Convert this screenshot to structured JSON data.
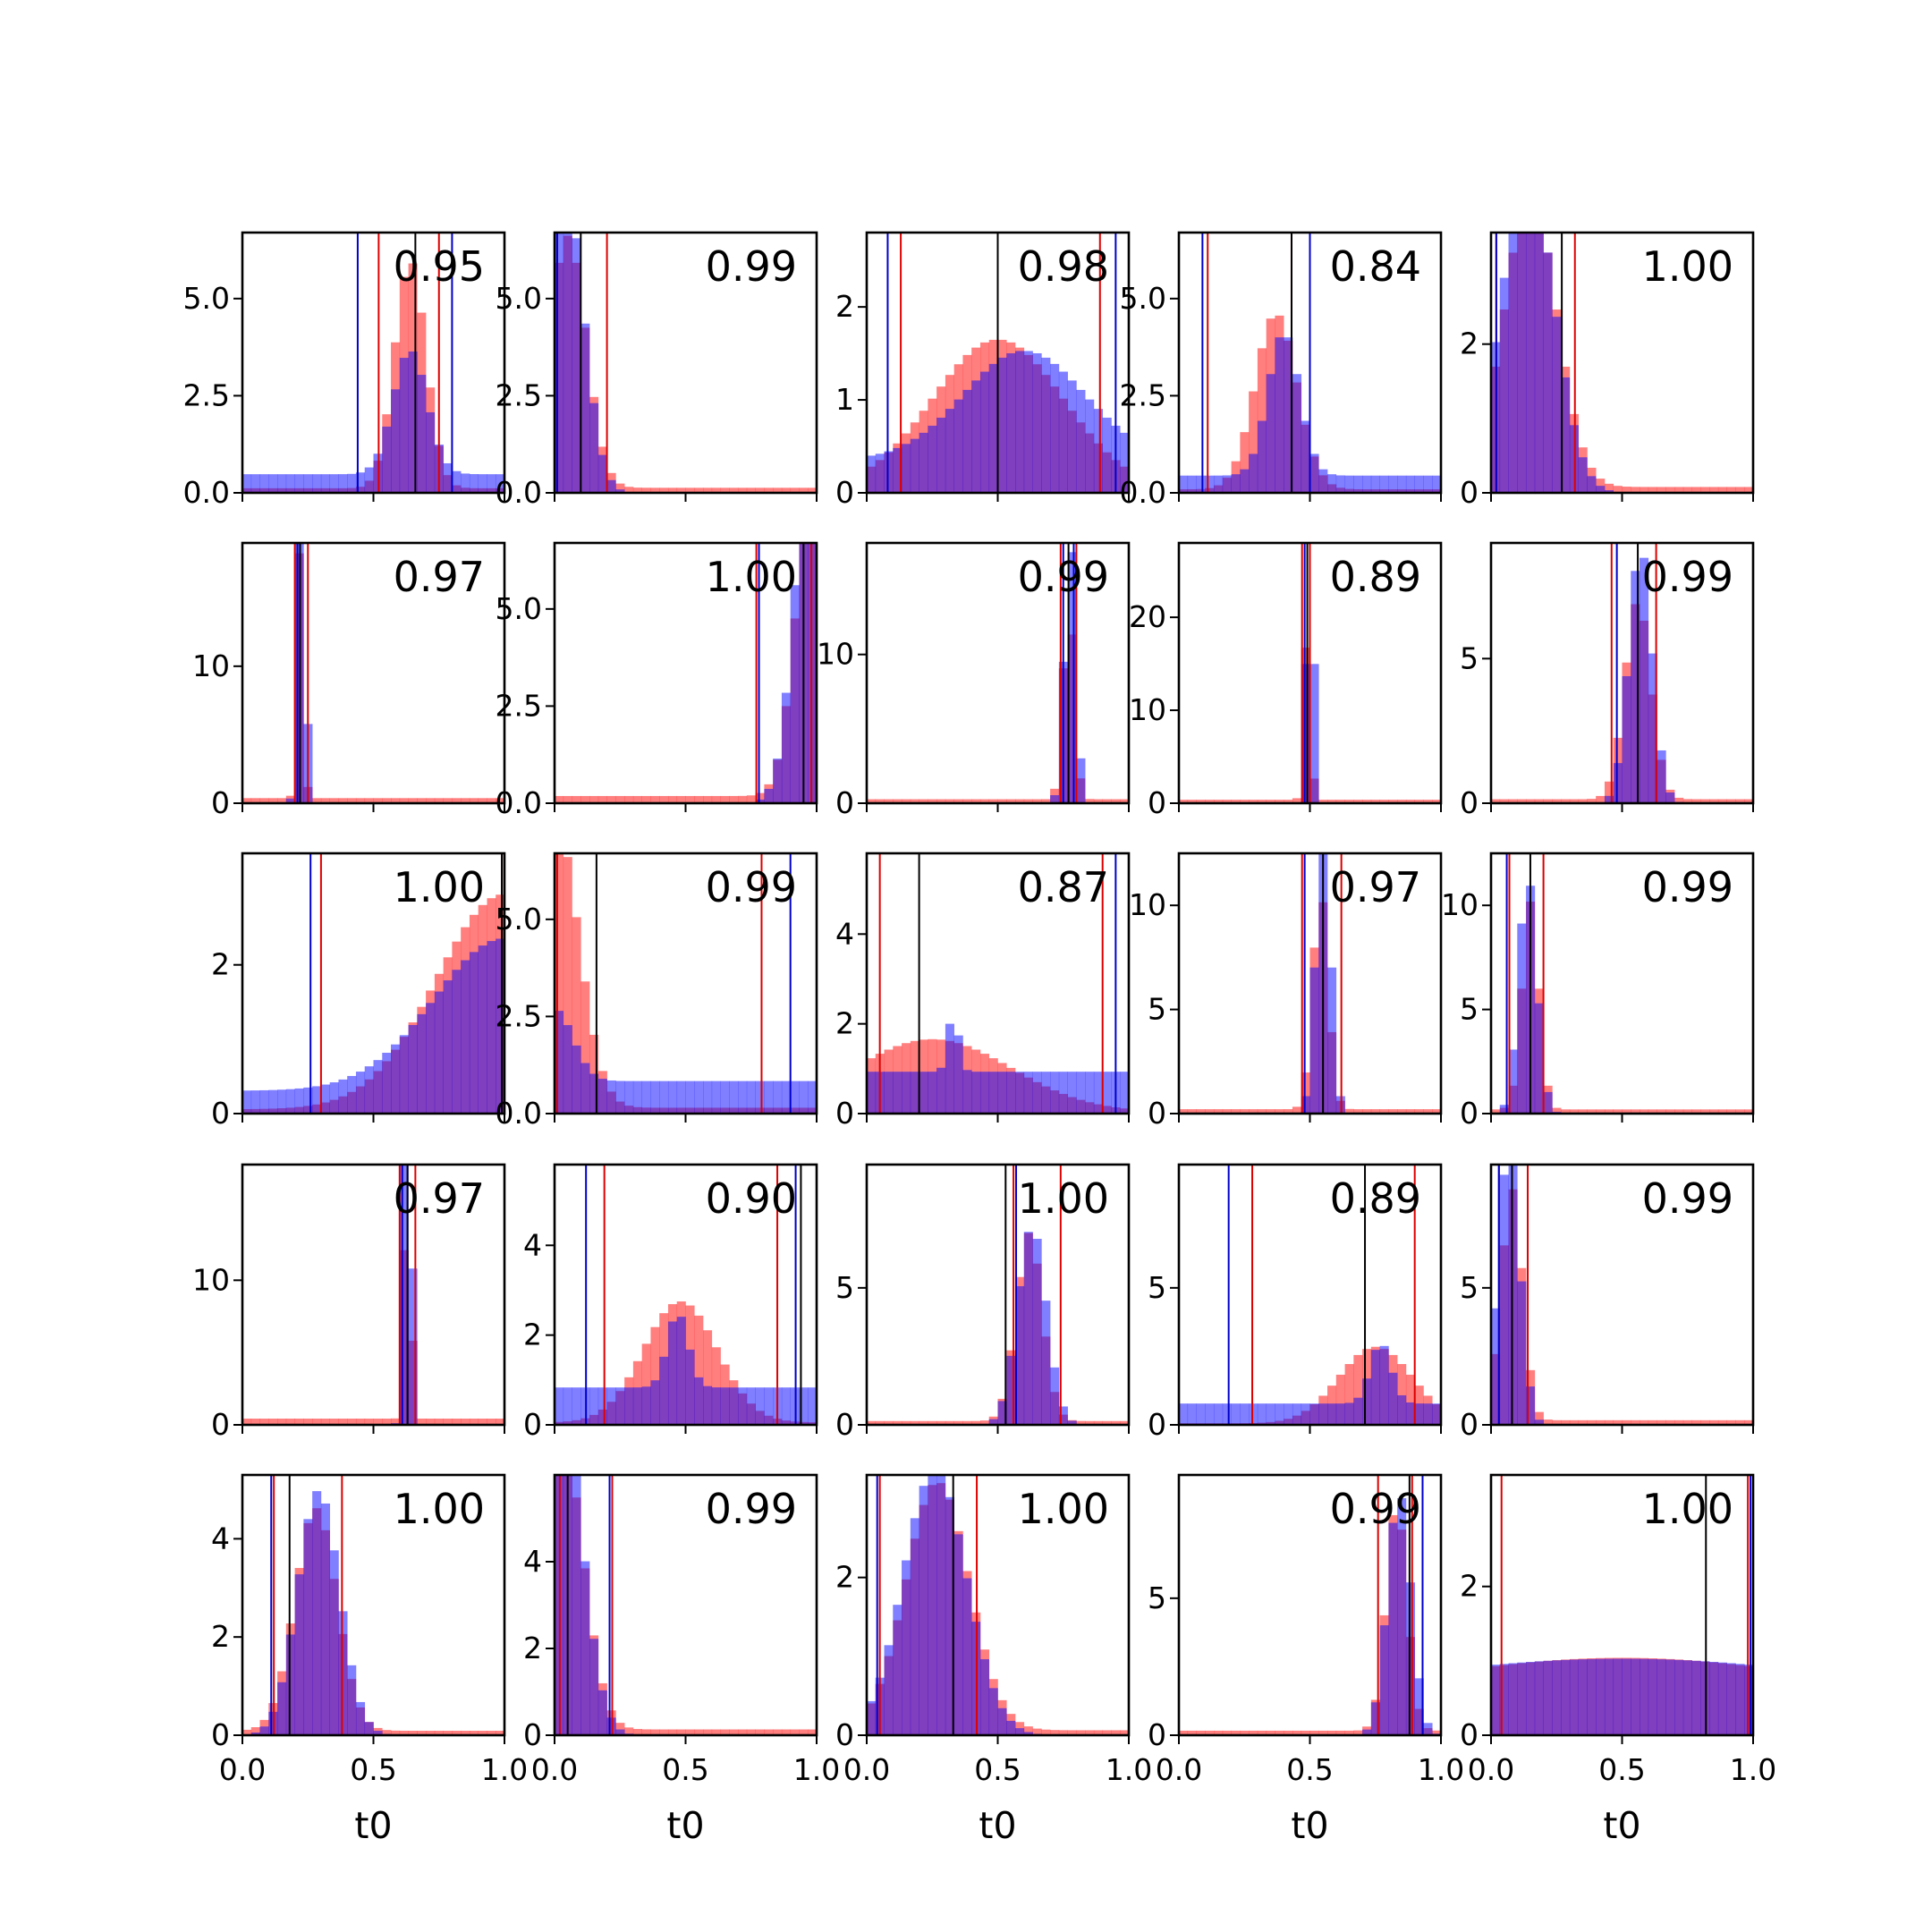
{
  "chart_data": {
    "type": "histogram-grid",
    "rows": 5,
    "cols": 5,
    "xlabel": "t0",
    "xlim": [
      0,
      1
    ],
    "xticks": [
      "0.0",
      "0.5",
      "1.0"
    ],
    "colors": {
      "red_hist": "#ff0000",
      "blue_hist": "#0000ff",
      "overlap": "#7f3fbf",
      "red_line": "#dd0000",
      "blue_line": "#0000cc",
      "black_line": "#000000"
    },
    "panels": [
      {
        "label": "0.95",
        "ylim": [
          0,
          6.7
        ],
        "yticks": [
          "0.0",
          "2.5",
          "5.0"
        ],
        "yticks_v": [
          0,
          2.5,
          5
        ],
        "red_mu": 0.64,
        "red_sd": 0.06,
        "blue_mu": 0.64,
        "blue_sd": 0.065,
        "blue_noise": 0.15,
        "red_lines": [
          0.52,
          0.75
        ],
        "blue_lines": [
          0.44,
          0.8
        ],
        "black_lines": [
          0.66
        ]
      },
      {
        "label": "0.99",
        "ylim": [
          0,
          6.7
        ],
        "yticks": [
          "0.0",
          "2.5",
          "5.0"
        ],
        "yticks_v": [
          0,
          2.5,
          5
        ],
        "red_mu": 0.05,
        "red_sd": 0.07,
        "blue_mu": 0.04,
        "blue_sd": 0.07,
        "blue_noise": 0.0,
        "red_lines": [
          0.01,
          0.2
        ],
        "blue_lines": [
          0.01
        ],
        "black_lines": [
          0.1
        ]
      },
      {
        "label": "0.98",
        "ylim": [
          0,
          2.8
        ],
        "yticks": [
          "0",
          "1",
          "2"
        ],
        "yticks_v": [
          0,
          1,
          2
        ],
        "red_mu": 0.5,
        "red_sd": 0.25,
        "blue_mu": 0.6,
        "blue_sd": 0.23,
        "blue_noise": 0.3,
        "red_lines": [
          0.13,
          0.89
        ],
        "blue_lines": [
          0.08,
          0.95
        ],
        "black_lines": [
          0.5
        ]
      },
      {
        "label": "0.84",
        "ylim": [
          0,
          6.7
        ],
        "yticks": [
          "0.0",
          "2.5",
          "5.0"
        ],
        "yticks_v": [
          0,
          2.5,
          5
        ],
        "red_mu": 0.37,
        "red_sd": 0.08,
        "blue_mu": 0.4,
        "blue_sd": 0.06,
        "blue_noise": 0.12,
        "red_lines": [
          0.11,
          0.43
        ],
        "blue_lines": [
          0.09,
          0.5
        ],
        "black_lines": [
          0.43
        ]
      },
      {
        "label": "1.00",
        "ylim": [
          0,
          3.5
        ],
        "yticks": [
          "0",
          "2"
        ],
        "yticks_v": [
          0,
          2
        ],
        "red_mu": 0.15,
        "red_sd": 0.1,
        "blue_mu": 0.14,
        "blue_sd": 0.1,
        "blue_noise": 0.0,
        "red_lines": [
          0.02,
          0.32
        ],
        "blue_lines": [
          0.02
        ],
        "black_lines": [
          0.27
        ]
      },
      {
        "label": "0.97",
        "ylim": [
          0,
          19
        ],
        "yticks": [
          "0",
          "10"
        ],
        "yticks_v": [
          0,
          10
        ],
        "red_mu": 0.22,
        "red_sd": 0.012,
        "blue_mu": 0.225,
        "blue_sd": 0.014,
        "blue_noise": 0.0,
        "red_lines": [
          0.2,
          0.25
        ],
        "blue_lines": [
          0.21
        ],
        "black_lines": [
          0.22
        ]
      },
      {
        "label": "1.00",
        "ylim": [
          0,
          6.7
        ],
        "yticks": [
          "0.0",
          "2.5",
          "5.0"
        ],
        "yticks_v": [
          0,
          2.5,
          5
        ],
        "red_mu": 1.0,
        "red_sd": 0.07,
        "blue_mu": 1.0,
        "blue_sd": 0.07,
        "blue_noise": 0.0,
        "red_lines": [
          0.77,
          0.98
        ],
        "blue_lines": [
          0.78
        ],
        "black_lines": [
          0.95
        ]
      },
      {
        "label": "0.99",
        "ylim": [
          0,
          17.5
        ],
        "yticks": [
          "0",
          "10"
        ],
        "yticks_v": [
          0,
          10
        ],
        "red_mu": 0.77,
        "red_sd": 0.022,
        "blue_mu": 0.775,
        "blue_sd": 0.022,
        "blue_noise": 0.0,
        "red_lines": [
          0.74,
          0.8
        ],
        "blue_lines": [
          0.75,
          0.79
        ],
        "black_lines": [
          0.77
        ]
      },
      {
        "label": "0.89",
        "ylim": [
          0,
          28
        ],
        "yticks": [
          "0",
          "10",
          "20"
        ],
        "yticks_v": [
          0,
          10,
          20
        ],
        "red_mu": 0.49,
        "red_sd": 0.013,
        "blue_mu": 0.5,
        "blue_sd": 0.013,
        "blue_noise": 0.0,
        "red_lines": [
          0.47,
          0.5
        ],
        "blue_lines": [
          0.48
        ],
        "black_lines": [
          0.49
        ]
      },
      {
        "label": "0.99",
        "ylim": [
          0,
          9
        ],
        "yticks": [
          "0",
          "5"
        ],
        "yticks_v": [
          0,
          5
        ],
        "red_mu": 0.56,
        "red_sd": 0.05,
        "blue_mu": 0.57,
        "blue_sd": 0.045,
        "blue_noise": 0.0,
        "red_lines": [
          0.46,
          0.63
        ],
        "blue_lines": [
          0.48
        ],
        "black_lines": [
          0.56
        ]
      },
      {
        "label": "1.00",
        "ylim": [
          0,
          3.5
        ],
        "yticks": [
          "0",
          "2"
        ],
        "yticks_v": [
          0,
          2
        ],
        "red_mu": 1.0,
        "red_sd": 0.26,
        "blue_mu": 1.0,
        "blue_sd": 0.27,
        "blue_noise": 0.15,
        "red_lines": [
          0.3,
          0.99
        ],
        "blue_lines": [
          0.26
        ],
        "black_lines": [
          0.99
        ]
      },
      {
        "label": "0.99",
        "ylim": [
          0,
          6.7
        ],
        "yticks": [
          "0.0",
          "2.5",
          "5.0"
        ],
        "yticks_v": [
          0,
          2.5,
          5
        ],
        "red_mu": 0.0,
        "red_sd": 0.09,
        "blue_mu": 0.0,
        "blue_sd": 0.07,
        "blue_noise": 0.45,
        "red_lines": [
          0.01,
          0.79
        ],
        "blue_lines": [
          0.9
        ],
        "black_lines": [
          0.16
        ]
      },
      {
        "label": "0.87",
        "ylim": [
          0,
          5.8
        ],
        "yticks": [
          "0",
          "2",
          "4"
        ],
        "yticks_v": [
          0,
          2,
          4
        ],
        "red_mu": 0.25,
        "red_sd": 0.3,
        "blue_mu": 0.33,
        "blue_sd": 0.02,
        "blue_noise": 0.7,
        "red_lines": [
          0.05,
          0.9
        ],
        "blue_lines": [
          0.95
        ],
        "black_lines": [
          0.2
        ]
      },
      {
        "label": "0.97",
        "ylim": [
          0,
          12.5
        ],
        "yticks": [
          "0",
          "5",
          "10"
        ],
        "yticks_v": [
          0,
          5,
          10
        ],
        "red_mu": 0.54,
        "red_sd": 0.03,
        "blue_mu": 0.55,
        "blue_sd": 0.028,
        "blue_noise": 0.0,
        "red_lines": [
          0.47,
          0.62
        ],
        "blue_lines": [
          0.48
        ],
        "black_lines": [
          0.55
        ]
      },
      {
        "label": "0.99",
        "ylim": [
          0,
          12.5
        ],
        "yticks": [
          "0",
          "5",
          "10"
        ],
        "yticks_v": [
          0,
          5,
          10
        ],
        "red_mu": 0.15,
        "red_sd": 0.032,
        "blue_mu": 0.14,
        "blue_sd": 0.035,
        "blue_noise": 0.0,
        "red_lines": [
          0.07,
          0.2
        ],
        "blue_lines": [
          0.06
        ],
        "black_lines": [
          0.15
        ]
      },
      {
        "label": "0.97",
        "ylim": [
          0,
          18
        ],
        "yticks": [
          "0",
          "10"
        ],
        "yticks_v": [
          0,
          10
        ],
        "red_mu": 0.63,
        "red_sd": 0.012,
        "blue_mu": 0.63,
        "blue_sd": 0.014,
        "blue_noise": 0.0,
        "red_lines": [
          0.6,
          0.66
        ],
        "blue_lines": [
          0.61
        ],
        "black_lines": [
          0.63
        ]
      },
      {
        "label": "0.90",
        "ylim": [
          0,
          5.8
        ],
        "yticks": [
          "0",
          "2",
          "4"
        ],
        "yticks_v": [
          0,
          2,
          4
        ],
        "red_mu": 0.48,
        "red_sd": 0.14,
        "blue_mu": 0.47,
        "blue_sd": 0.04,
        "blue_noise": 0.5,
        "red_lines": [
          0.19,
          0.85
        ],
        "blue_lines": [
          0.12,
          0.92
        ],
        "black_lines": [
          0.94
        ]
      },
      {
        "label": "1.00",
        "ylim": [
          0,
          9.5
        ],
        "yticks": [
          "0",
          "5"
        ],
        "yticks_v": [
          0,
          5
        ],
        "red_mu": 0.62,
        "red_sd": 0.05,
        "blue_mu": 0.63,
        "blue_sd": 0.055,
        "blue_noise": 0.0,
        "red_lines": [
          0.56,
          0.74
        ],
        "blue_lines": [
          0.57
        ],
        "black_lines": [
          0.53
        ]
      },
      {
        "label": "0.89",
        "ylim": [
          0,
          9.5
        ],
        "yticks": [
          "0",
          "5"
        ],
        "yticks_v": [
          0,
          5
        ],
        "red_mu": 0.75,
        "red_sd": 0.14,
        "blue_mu": 0.77,
        "blue_sd": 0.04,
        "blue_noise": 0.35,
        "red_lines": [
          0.28,
          0.9
        ],
        "blue_lines": [
          0.19
        ],
        "black_lines": [
          0.71
        ]
      },
      {
        "label": "0.99",
        "ylim": [
          0,
          9.5
        ],
        "yticks": [
          "0",
          "5"
        ],
        "yticks_v": [
          0,
          5
        ],
        "red_mu": 0.08,
        "red_sd": 0.04,
        "blue_mu": 0.07,
        "blue_sd": 0.04,
        "blue_noise": 0.0,
        "red_lines": [
          0.03,
          0.14
        ],
        "blue_lines": [
          0.03
        ],
        "black_lines": [
          0.08
        ]
      },
      {
        "label": "1.00",
        "ylim": [
          0,
          5.3
        ],
        "yticks": [
          "0",
          "2",
          "4"
        ],
        "yticks_v": [
          0,
          2,
          4
        ],
        "red_mu": 0.28,
        "red_sd": 0.08,
        "blue_mu": 0.29,
        "blue_sd": 0.08,
        "blue_noise": 0.0,
        "red_lines": [
          0.12,
          0.38
        ],
        "blue_lines": [
          0.11
        ],
        "black_lines": [
          0.18
        ]
      },
      {
        "label": "0.99",
        "ylim": [
          0,
          6
        ],
        "yticks": [
          "0",
          "2",
          "4"
        ],
        "yticks_v": [
          0,
          2,
          4
        ],
        "red_mu": 0.03,
        "red_sd": 0.08,
        "blue_mu": 0.02,
        "blue_sd": 0.08,
        "blue_noise": 0.0,
        "red_lines": [
          0.02,
          0.22
        ],
        "blue_lines": [
          0.21
        ],
        "black_lines": [
          0.05
        ]
      },
      {
        "label": "1.00",
        "ylim": [
          0,
          3.3
        ],
        "yticks": [
          "0",
          "2"
        ],
        "yticks_v": [
          0,
          2
        ],
        "red_mu": 0.27,
        "red_sd": 0.12,
        "blue_mu": 0.26,
        "blue_sd": 0.12,
        "blue_noise": 0.0,
        "red_lines": [
          0.05,
          0.42
        ],
        "blue_lines": [
          0.04
        ],
        "black_lines": [
          0.33
        ]
      },
      {
        "label": "0.99",
        "ylim": [
          0,
          9.5
        ],
        "yticks": [
          "0",
          "5"
        ],
        "yticks_v": [
          0,
          5
        ],
        "red_mu": 0.83,
        "red_sd": 0.04,
        "blue_mu": 0.84,
        "blue_sd": 0.045,
        "blue_noise": 0.0,
        "red_lines": [
          0.76,
          0.89
        ],
        "blue_lines": [
          0.93
        ],
        "black_lines": [
          0.88
        ]
      },
      {
        "label": "1.00",
        "ylim": [
          0,
          3.5
        ],
        "yticks": [
          "0",
          "2"
        ],
        "yticks_v": [
          0,
          2
        ],
        "red_mu": 0.5,
        "red_sd": 1.0,
        "blue_mu": 0.5,
        "blue_sd": 1.2,
        "blue_noise": 0.0,
        "red_lines": [
          0.04,
          0.98
        ],
        "blue_lines": [
          0.99
        ],
        "black_lines": [
          0.82
        ]
      }
    ]
  }
}
